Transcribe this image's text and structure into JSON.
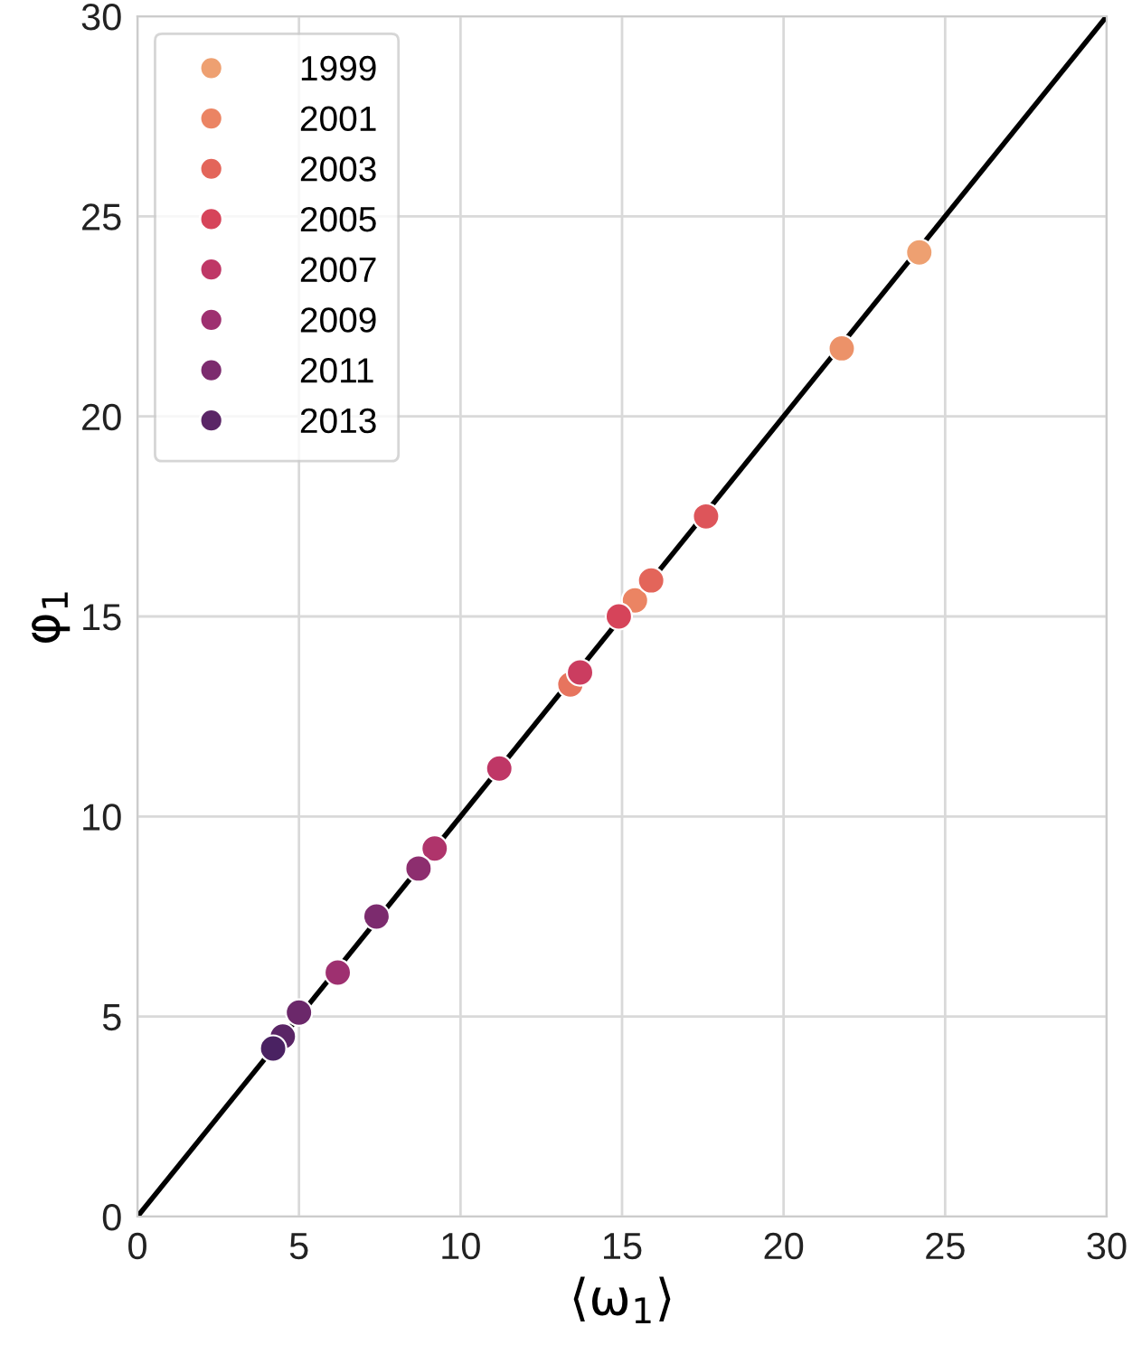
{
  "chart_data": {
    "type": "scatter",
    "xlabel": "⟨ω$_{1}$⟩",
    "ylabel": "φ$_{1}$",
    "xlim": [
      0,
      30
    ],
    "ylim": [
      0,
      30
    ],
    "xticks": [
      0,
      5,
      10,
      15,
      20,
      25,
      30
    ],
    "yticks": [
      0,
      5,
      10,
      15,
      20,
      25,
      30
    ],
    "grid": true,
    "legend": "top left",
    "marker": "circle",
    "series": [
      {
        "type": "line",
        "color": "#000000",
        "x": [
          0,
          30
        ],
        "values": [
          0,
          30
        ],
        "marker": "none"
      },
      {
        "name": "1999",
        "color": "#eea071",
        "x": [
          24.2
        ],
        "values": [
          24.1
        ]
      },
      {
        "color": "#ec9269",
        "x": [
          21.8
        ],
        "values": [
          21.7
        ]
      },
      {
        "name": "2001",
        "color": "#eb8463",
        "x": [
          15.4
        ],
        "values": [
          15.4
        ]
      },
      {
        "color": "#e7745e",
        "x": [
          13.4
        ],
        "values": [
          13.3
        ]
      },
      {
        "name": "2003",
        "color": "#e3655a",
        "x": [
          15.9
        ],
        "values": [
          15.9
        ]
      },
      {
        "color": "#dd555a",
        "x": [
          17.6
        ],
        "values": [
          17.5
        ]
      },
      {
        "name": "2005",
        "color": "#d6445a",
        "x": [
          14.9
        ],
        "values": [
          15.0
        ]
      },
      {
        "color": "#cb3d60",
        "x": [
          13.7
        ],
        "values": [
          13.6
        ]
      },
      {
        "name": "2007",
        "color": "#bf3766",
        "x": [
          11.2
        ],
        "values": [
          11.2
        ]
      },
      {
        "color": "#af346b",
        "x": [
          9.2
        ],
        "values": [
          9.2
        ]
      },
      {
        "name": "2009",
        "color": "#9e3070",
        "x": [
          6.2
        ],
        "values": [
          6.1
        ]
      },
      {
        "color": "#8d2e6f",
        "x": [
          8.7
        ],
        "values": [
          8.7
        ]
      },
      {
        "name": "2011",
        "color": "#7c2b6e",
        "x": [
          7.4
        ],
        "values": [
          7.5
        ]
      },
      {
        "color": "#6b286a",
        "x": [
          5.0
        ],
        "values": [
          5.1
        ]
      },
      {
        "name": "2013",
        "color": "#5a2566",
        "x": [
          4.5
        ],
        "values": [
          4.5
        ]
      },
      {
        "color": "#4a2262",
        "x": [
          4.2
        ],
        "values": [
          4.2
        ]
      }
    ]
  }
}
